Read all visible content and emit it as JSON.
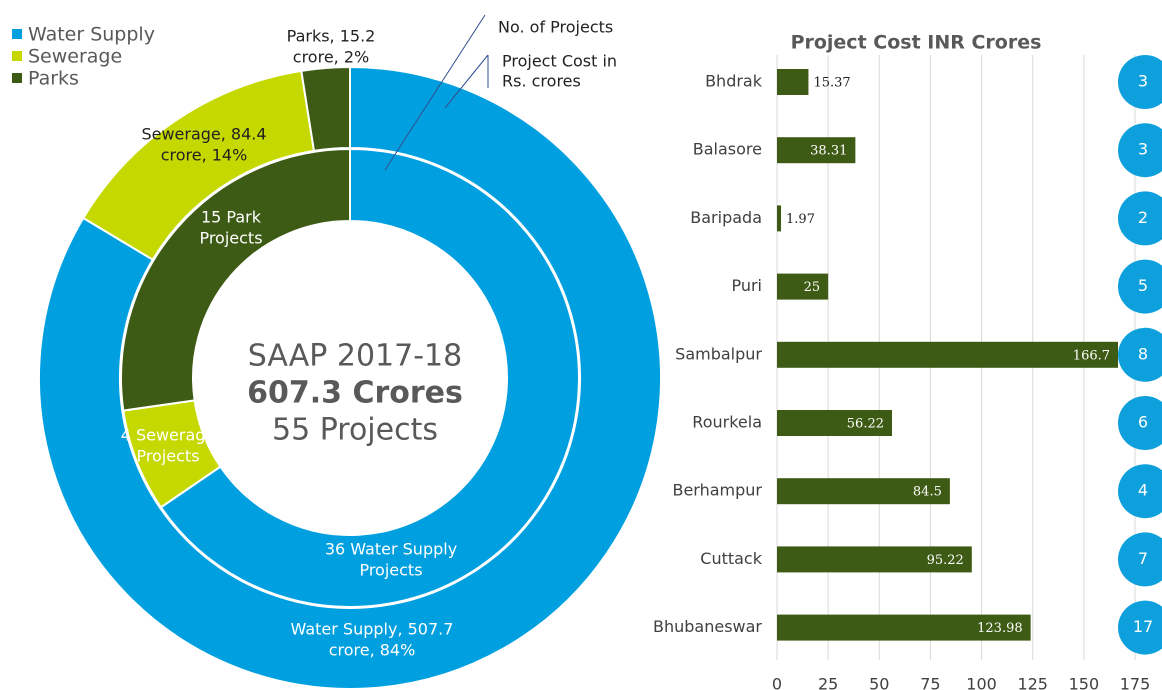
{
  "chart_data": [
    {
      "type": "donut",
      "categories": [
        "Water Supply",
        "Sewerage",
        "Parks"
      ],
      "colors": [
        "#009fe0",
        "#c5d800",
        "#3e5b15"
      ],
      "outer": {
        "values": [
          507.7,
          84.4,
          15.2
        ],
        "value_labels": [
          [
            "Water Supply, 507.7",
            "crore, 84%"
          ],
          [
            "Sewerage, 84.4",
            "crore, 14%"
          ],
          [
            "Parks, 15.2",
            "crore, 2%"
          ]
        ]
      },
      "inner": {
        "values": [
          36,
          4,
          15
        ],
        "value_labels": [
          [
            "36 Water Supply",
            "Projects"
          ],
          [
            "4 Sewerage",
            "Projects"
          ],
          [
            "15 Park",
            "Projects"
          ]
        ]
      },
      "center": [
        "SAAP 2017-18",
        "607.3 Crores",
        "55 Projects"
      ],
      "annotations": [
        "No. of Projects",
        [
          "Project Cost in",
          "Rs. crores"
        ]
      ]
    },
    {
      "type": "hbar",
      "title": "Project Cost INR Crores",
      "categories": [
        "Bhdrak",
        "Balasore",
        "Baripada",
        "Puri",
        "Sambalpur",
        "Rourkela",
        "Berhampur",
        "Cuttack",
        "Bhubaneswar"
      ],
      "series": [
        {
          "color": "#3e5b15",
          "values": [
            15.37,
            38.31,
            1.97,
            25,
            166.7,
            56.22,
            84.5,
            95.22,
            123.98
          ]
        }
      ],
      "bubbles": {
        "color": "#0ea0dc",
        "values": [
          3,
          3,
          2,
          5,
          8,
          6,
          4,
          7,
          17
        ]
      },
      "xlim": [
        0,
        175
      ],
      "xticks": [
        0,
        25,
        50,
        75,
        100,
        125,
        150,
        175
      ],
      "grid": true
    }
  ]
}
